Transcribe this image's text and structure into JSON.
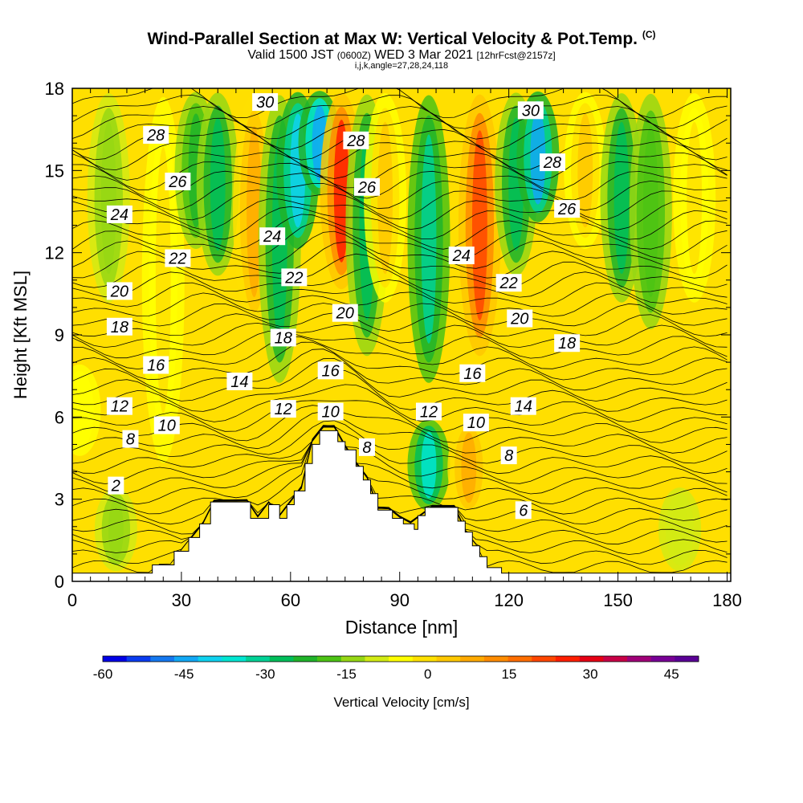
{
  "header": {
    "title": "Wind-Parallel Section at Max W: Vertical Velocity & Pot.Temp.",
    "title_tag": "(C)",
    "valid_prefix": "Valid 1500 JST",
    "valid_zulu": "(0600Z)",
    "valid_date": "WED 3 Mar 2021",
    "valid_fcst": "[12hrFcst@2157z]",
    "params": "i,j,k,angle=27,28,24,118"
  },
  "chart_data": {
    "type": "heatmap",
    "xlabel": "Distance [nm]",
    "ylabel": "Height [Kft MSL]",
    "xlim": [
      0,
      181
    ],
    "ylim": [
      0,
      18
    ],
    "xticks": [
      0,
      30,
      60,
      90,
      120,
      150,
      180
    ],
    "yticks": [
      0,
      3,
      6,
      9,
      12,
      15,
      18
    ],
    "colorbar": {
      "label": "Vertical Velocity [cm/s]",
      "min": -60,
      "max": 50,
      "step": 5,
      "tick_values": [
        -60,
        -45,
        -30,
        -15,
        0,
        15,
        30,
        45
      ],
      "colors": [
        "#0000e6",
        "#0a3cf0",
        "#1478f0",
        "#12a8f5",
        "#0fd2f0",
        "#00e6d2",
        "#00d296",
        "#00be5a",
        "#20b42a",
        "#4cc314",
        "#96d714",
        "#d2eb14",
        "#ffff00",
        "#ffe100",
        "#ffc800",
        "#ffaa00",
        "#ff8c00",
        "#ff6e00",
        "#ff4600",
        "#ff1e00",
        "#e60014",
        "#c80046",
        "#a00078",
        "#780096",
        "#5a0096"
      ]
    },
    "theta_contour_labels": [
      {
        "label": "2",
        "x": 12,
        "y": 3.5
      },
      {
        "label": "8",
        "x": 16,
        "y": 5.2
      },
      {
        "label": "10",
        "x": 26,
        "y": 5.7
      },
      {
        "label": "12",
        "x": 13,
        "y": 6.4
      },
      {
        "label": "16",
        "x": 23,
        "y": 7.9
      },
      {
        "label": "18",
        "x": 13,
        "y": 9.3
      },
      {
        "label": "20",
        "x": 13,
        "y": 10.6
      },
      {
        "label": "22",
        "x": 29,
        "y": 11.8
      },
      {
        "label": "24",
        "x": 13,
        "y": 13.4
      },
      {
        "label": "26",
        "x": 29,
        "y": 14.6
      },
      {
        "label": "28",
        "x": 23,
        "y": 16.3
      },
      {
        "label": "30",
        "x": 53,
        "y": 17.5
      },
      {
        "label": "24",
        "x": 55,
        "y": 12.6
      },
      {
        "label": "22",
        "x": 61,
        "y": 11.1
      },
      {
        "label": "18",
        "x": 58,
        "y": 8.9
      },
      {
        "label": "14",
        "x": 46,
        "y": 7.3
      },
      {
        "label": "12",
        "x": 58,
        "y": 6.3
      },
      {
        "label": "16",
        "x": 71,
        "y": 7.7
      },
      {
        "label": "10",
        "x": 71,
        "y": 6.2
      },
      {
        "label": "20",
        "x": 75,
        "y": 9.8
      },
      {
        "label": "26",
        "x": 81,
        "y": 14.4
      },
      {
        "label": "28",
        "x": 78,
        "y": 16.1
      },
      {
        "label": "8",
        "x": 81,
        "y": 4.9
      },
      {
        "label": "12",
        "x": 98,
        "y": 6.2
      },
      {
        "label": "10",
        "x": 111,
        "y": 5.8
      },
      {
        "label": "16",
        "x": 110,
        "y": 7.6
      },
      {
        "label": "24",
        "x": 107,
        "y": 11.9
      },
      {
        "label": "22",
        "x": 120,
        "y": 10.9
      },
      {
        "label": "20",
        "x": 123,
        "y": 9.6
      },
      {
        "label": "18",
        "x": 136,
        "y": 8.7
      },
      {
        "label": "14",
        "x": 124,
        "y": 6.4
      },
      {
        "label": "8",
        "x": 120,
        "y": 4.6
      },
      {
        "label": "6",
        "x": 124,
        "y": 2.6
      },
      {
        "label": "30",
        "x": 126,
        "y": 17.2
      },
      {
        "label": "28",
        "x": 132,
        "y": 15.3
      },
      {
        "label": "26",
        "x": 136,
        "y": 13.6
      }
    ],
    "velocity_bands": [
      {
        "x": 10,
        "bottom": 10,
        "top": 18,
        "w": -8
      },
      {
        "x": 25,
        "bottom": 4,
        "top": 18,
        "w": 5
      },
      {
        "x": 34,
        "bottom": 12,
        "top": 18,
        "w": -18
      },
      {
        "x": 40,
        "bottom": 11,
        "top": 18,
        "w": -22
      },
      {
        "x": 50,
        "bottom": 9,
        "top": 18,
        "w": 15
      },
      {
        "x": 57,
        "bottom": 7,
        "top": 18,
        "w": -25
      },
      {
        "x": 62,
        "bottom": 12,
        "top": 18,
        "w": -40
      },
      {
        "x": 68,
        "bottom": 14,
        "top": 18,
        "w": -45
      },
      {
        "x": 74,
        "bottom": 10.5,
        "top": 18,
        "w": 35
      },
      {
        "x": 81,
        "bottom": 8,
        "top": 18,
        "w": -25
      },
      {
        "x": 86,
        "bottom": 10,
        "top": 18,
        "w": 10
      },
      {
        "x": 98,
        "bottom": 7,
        "top": 18,
        "w": -28
      },
      {
        "x": 112,
        "bottom": 8,
        "top": 18,
        "w": 32
      },
      {
        "x": 122,
        "bottom": 11,
        "top": 18,
        "w": -25
      },
      {
        "x": 128,
        "bottom": 13,
        "top": 18,
        "w": -42
      },
      {
        "x": 141,
        "bottom": 12,
        "top": 18,
        "w": 10
      },
      {
        "x": 151,
        "bottom": 10,
        "top": 18,
        "w": -25
      },
      {
        "x": 159,
        "bottom": 9,
        "top": 18,
        "w": -15
      },
      {
        "x": 171,
        "bottom": 10,
        "top": 18,
        "w": 5
      },
      {
        "x": 98,
        "bottom": 2.5,
        "top": 6,
        "w": -35
      },
      {
        "x": 109,
        "bottom": 2.3,
        "top": 6,
        "w": 15
      },
      {
        "x": 12,
        "bottom": 0.3,
        "top": 3.5,
        "w": -10
      },
      {
        "x": 2,
        "bottom": 4.5,
        "top": 8,
        "w": 3
      },
      {
        "x": 167,
        "bottom": 0.3,
        "top": 3.5,
        "w": -5
      }
    ],
    "terrain_profile": [
      [
        0,
        0.3
      ],
      [
        22,
        0.3
      ],
      [
        22,
        0.6
      ],
      [
        28,
        0.6
      ],
      [
        28,
        1.1
      ],
      [
        32,
        1.1
      ],
      [
        32,
        1.6
      ],
      [
        35,
        1.6
      ],
      [
        35,
        2.1
      ],
      [
        38,
        2.1
      ],
      [
        38,
        2.9
      ],
      [
        49,
        2.9
      ],
      [
        49,
        2.3
      ],
      [
        54,
        2.3
      ],
      [
        54,
        2.8
      ],
      [
        57,
        2.8
      ],
      [
        57,
        2.3
      ],
      [
        59,
        2.3
      ],
      [
        59,
        2.8
      ],
      [
        61,
        2.8
      ],
      [
        61,
        3.3
      ],
      [
        64,
        3.3
      ],
      [
        64,
        4.3
      ],
      [
        66,
        4.3
      ],
      [
        66,
        5.0
      ],
      [
        68,
        5.0
      ],
      [
        68,
        5.5
      ],
      [
        73,
        5.5
      ],
      [
        73,
        5.1
      ],
      [
        75,
        5.1
      ],
      [
        75,
        4.8
      ],
      [
        78,
        4.8
      ],
      [
        78,
        4.2
      ],
      [
        80,
        4.2
      ],
      [
        80,
        3.7
      ],
      [
        82,
        3.7
      ],
      [
        82,
        3.2
      ],
      [
        84,
        3.2
      ],
      [
        84,
        2.6
      ],
      [
        88,
        2.6
      ],
      [
        88,
        2.3
      ],
      [
        91,
        2.3
      ],
      [
        91,
        2.1
      ],
      [
        94,
        2.1
      ],
      [
        94,
        1.9
      ],
      [
        95,
        1.9
      ],
      [
        95,
        2.4
      ],
      [
        97,
        2.4
      ],
      [
        97,
        2.7
      ],
      [
        106,
        2.7
      ],
      [
        106,
        2.2
      ],
      [
        108,
        2.2
      ],
      [
        108,
        1.8
      ],
      [
        110,
        1.8
      ],
      [
        110,
        1.3
      ],
      [
        112,
        1.3
      ],
      [
        112,
        0.9
      ],
      [
        114,
        0.9
      ],
      [
        114,
        0.5
      ],
      [
        118,
        0.5
      ],
      [
        118,
        0.3
      ],
      [
        181,
        0.3
      ]
    ]
  }
}
